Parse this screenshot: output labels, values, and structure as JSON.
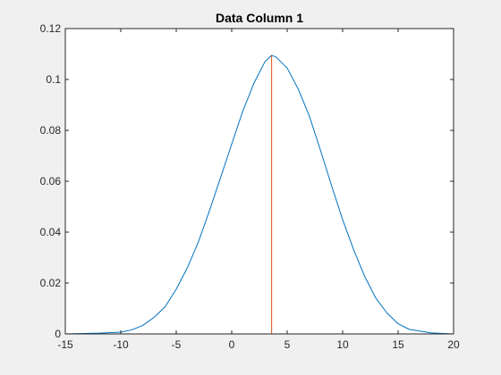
{
  "chart_data": {
    "type": "line",
    "title": "Data Column 1",
    "xlabel": "",
    "ylabel": "",
    "xlim": [
      -15,
      20
    ],
    "ylim": [
      0,
      0.12
    ],
    "xticks": [
      -15,
      -10,
      -5,
      0,
      5,
      10,
      15,
      20
    ],
    "xtick_labels": [
      "-15",
      "-10",
      "-5",
      "0",
      "5",
      "10",
      "15",
      "20"
    ],
    "yticks": [
      0,
      0.02,
      0.04,
      0.06,
      0.08,
      0.1,
      0.12
    ],
    "ytick_labels": [
      "0",
      "0.02",
      "0.04",
      "0.06",
      "0.08",
      "0.1",
      "0.12"
    ],
    "grid": false,
    "legend": "none",
    "series": [
      {
        "color": "#0072BD",
        "kind": "line",
        "x": [
          -15,
          -12,
          -10,
          -9,
          -8,
          -7,
          -6,
          -5,
          -4,
          -3,
          -2,
          -1,
          0,
          1,
          2,
          3,
          3.6,
          4,
          5,
          6,
          7,
          8,
          9,
          10,
          11,
          12,
          13,
          14,
          15,
          16,
          18,
          20
        ],
        "y": [
          0.0,
          0.0003,
          0.0007,
          0.0016,
          0.0034,
          0.0065,
          0.0107,
          0.0176,
          0.026,
          0.0362,
          0.0485,
          0.0615,
          0.0746,
          0.0876,
          0.0985,
          0.107,
          0.1095,
          0.1088,
          0.1045,
          0.0962,
          0.0856,
          0.0722,
          0.0583,
          0.0449,
          0.033,
          0.0225,
          0.014,
          0.0082,
          0.004,
          0.0018,
          0.0004,
          0.0
        ]
      },
      {
        "color": "#D95319",
        "kind": "vertical-line",
        "x": [
          3.6,
          3.6
        ],
        "y": [
          0,
          0.1095
        ]
      }
    ]
  }
}
